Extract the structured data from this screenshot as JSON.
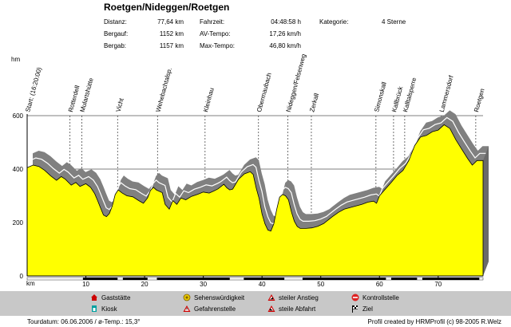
{
  "title": "Roetgen/Nideggen/Roetgen",
  "stats": {
    "col1": [
      {
        "label": "Distanz:",
        "value": "77,64 km"
      },
      {
        "label": "Bergauf:",
        "value": "1152 km"
      },
      {
        "label": "Bergab:",
        "value": "1157 km"
      }
    ],
    "col2": [
      {
        "label": "Fahrzeit:",
        "value": "04:48:58 h"
      },
      {
        "label": "AV-Tempo:",
        "value": "17,26 km/h"
      },
      {
        "label": "Max-Tempo:",
        "value": "46,80 km/h"
      }
    ],
    "col3": [
      {
        "label": "Kategorie:",
        "value": "4 Sterne"
      }
    ]
  },
  "legend": {
    "gaststaette": "Gaststätte",
    "kiosk": "Kiosk",
    "sehenswuerdigkeit": "Sehenswürdigkeit",
    "gefahrenstelle": "Gefahrenstelle",
    "steiler_anstieg": "steiler Anstieg",
    "steile_abfahrt": "steile Abfahrt",
    "kontrollstelle": "Kontrollstelle",
    "ziel": "Ziel",
    "colors": {
      "gaststaette": "#cc0000",
      "kiosk": "#00a0a0",
      "sehenswuerdigkeit": "#e6c800",
      "gefahrenstelle": "#cc0000",
      "anstieg": "#cc0000",
      "kontrollstelle": "#dd2222"
    }
  },
  "footer": {
    "left": "Tourdatum: 06.06.2006 / ø-Temp.: 15,3°",
    "right": "Profil created by HRMProfil (c) 98-2005 R.Welz"
  },
  "chart_data": {
    "type": "area",
    "ylabel": "hm",
    "xlabel": "km",
    "xlim": [
      0,
      77.64
    ],
    "ylim": [
      0,
      600
    ],
    "xticks": [
      10,
      20,
      30,
      40,
      50,
      60,
      70
    ],
    "yticks": [
      0,
      200,
      400,
      600
    ],
    "fill_color": "#ffff00",
    "shadow_color": "#808080",
    "grid": false,
    "profile": [
      [
        0,
        405
      ],
      [
        1,
        415
      ],
      [
        2,
        410
      ],
      [
        3,
        395
      ],
      [
        4,
        375
      ],
      [
        5,
        358
      ],
      [
        5.8,
        372
      ],
      [
        6.5,
        362
      ],
      [
        7.5,
        340
      ],
      [
        8.3,
        350
      ],
      [
        9,
        335
      ],
      [
        10,
        345
      ],
      [
        10.8,
        332
      ],
      [
        11.5,
        308
      ],
      [
        12,
        282
      ],
      [
        12.5,
        255
      ],
      [
        13,
        228
      ],
      [
        13.5,
        222
      ],
      [
        14,
        234
      ],
      [
        14.5,
        262
      ],
      [
        15,
        305
      ],
      [
        15.5,
        322
      ],
      [
        16.2,
        310
      ],
      [
        17,
        300
      ],
      [
        18,
        296
      ],
      [
        19,
        282
      ],
      [
        19.8,
        272
      ],
      [
        20.5,
        292
      ],
      [
        21,
        320
      ],
      [
        21.5,
        332
      ],
      [
        22,
        322
      ],
      [
        23,
        312
      ],
      [
        23.5,
        268
      ],
      [
        24.2,
        250
      ],
      [
        24.8,
        282
      ],
      [
        25.5,
        268
      ],
      [
        26.2,
        292
      ],
      [
        27,
        285
      ],
      [
        28,
        298
      ],
      [
        29,
        305
      ],
      [
        30,
        314
      ],
      [
        31,
        310
      ],
      [
        32,
        320
      ],
      [
        32.5,
        326
      ],
      [
        33.5,
        343
      ],
      [
        34,
        330
      ],
      [
        34.5,
        322
      ],
      [
        35,
        325
      ],
      [
        36,
        362
      ],
      [
        37,
        382
      ],
      [
        38,
        390
      ],
      [
        38.5,
        380
      ],
      [
        39,
        330
      ],
      [
        39.5,
        290
      ],
      [
        40,
        232
      ],
      [
        40.5,
        195
      ],
      [
        41,
        172
      ],
      [
        41.5,
        168
      ],
      [
        42,
        195
      ],
      [
        42.5,
        250
      ],
      [
        43,
        295
      ],
      [
        43.5,
        305
      ],
      [
        44,
        300
      ],
      [
        44.5,
        285
      ],
      [
        45,
        240
      ],
      [
        45.5,
        205
      ],
      [
        46,
        185
      ],
      [
        46.5,
        178
      ],
      [
        47.5,
        178
      ],
      [
        48.5,
        180
      ],
      [
        49.5,
        186
      ],
      [
        50.5,
        196
      ],
      [
        51,
        205
      ],
      [
        52,
        222
      ],
      [
        53,
        238
      ],
      [
        54,
        250
      ],
      [
        55,
        256
      ],
      [
        56,
        262
      ],
      [
        57,
        268
      ],
      [
        58,
        276
      ],
      [
        59,
        280
      ],
      [
        59.5,
        272
      ],
      [
        60,
        300
      ],
      [
        61,
        325
      ],
      [
        62,
        350
      ],
      [
        63,
        376
      ],
      [
        64,
        395
      ],
      [
        65,
        432
      ],
      [
        66,
        488
      ],
      [
        67,
        520
      ],
      [
        68,
        526
      ],
      [
        69,
        540
      ],
      [
        70,
        546
      ],
      [
        71,
        566
      ],
      [
        72,
        552
      ],
      [
        73,
        510
      ],
      [
        74,
        475
      ],
      [
        75,
        440
      ],
      [
        75.8,
        415
      ],
      [
        76.6,
        432
      ],
      [
        77.64,
        432
      ]
    ],
    "waypoints": [
      {
        "km": 0,
        "label": "Start: (16:20:00)"
      },
      {
        "km": 7.3,
        "label": "Rotterdell"
      },
      {
        "km": 9.3,
        "label": "Mulartshütte"
      },
      {
        "km": 15.4,
        "label": "Vicht"
      },
      {
        "km": 22.2,
        "label": "Wehebachtalsp."
      },
      {
        "km": 30.3,
        "label": "Kleinhau"
      },
      {
        "km": 39.4,
        "label": "Obermaubach"
      },
      {
        "km": 44.4,
        "label": "Nideggen/Felsenweg"
      },
      {
        "km": 48.4,
        "label": "Zerkall"
      },
      {
        "km": 59.4,
        "label": "Simonskall"
      },
      {
        "km": 62.4,
        "label": "Kallbrück"
      },
      {
        "km": 64.3,
        "label": "Kalltalsperre"
      },
      {
        "km": 70.5,
        "label": "Lammersdorf"
      },
      {
        "km": 76.4,
        "label": "Roetgen"
      }
    ],
    "segments": [
      {
        "from": 9.5,
        "to": 15.4,
        "type": "dark"
      },
      {
        "from": 16.3,
        "to": 20.5,
        "type": "dark"
      },
      {
        "from": 22.1,
        "to": 34.5,
        "type": "dark"
      },
      {
        "from": 36.9,
        "to": 43.8,
        "type": "dark"
      },
      {
        "from": 46.9,
        "to": 61.1,
        "type": "dark"
      },
      {
        "from": 62.0,
        "to": 66.4,
        "type": "dark"
      },
      {
        "from": 67.3,
        "to": 77.0,
        "type": "dark"
      }
    ]
  }
}
